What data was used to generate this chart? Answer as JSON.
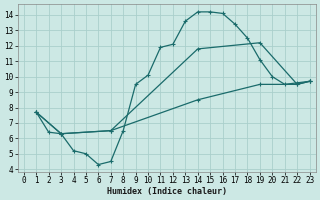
{
  "xlabel": "Humidex (Indice chaleur)",
  "xlim": [
    -0.5,
    23.5
  ],
  "ylim": [
    3.8,
    14.7
  ],
  "xticks": [
    0,
    1,
    2,
    3,
    4,
    5,
    6,
    7,
    8,
    9,
    10,
    11,
    12,
    13,
    14,
    15,
    16,
    17,
    18,
    19,
    20,
    21,
    22,
    23
  ],
  "yticks": [
    4,
    5,
    6,
    7,
    8,
    9,
    10,
    11,
    12,
    13,
    14
  ],
  "bg_color": "#cce8e4",
  "grid_color": "#aacfcc",
  "line_color": "#1a6b6b",
  "line1_x": [
    1,
    2,
    3,
    4,
    5,
    6,
    7,
    8,
    9,
    10,
    11,
    12,
    13,
    14,
    15,
    16,
    17,
    18,
    19,
    20,
    21,
    22,
    23
  ],
  "line1_y": [
    7.7,
    6.4,
    6.3,
    5.2,
    5.0,
    4.3,
    4.5,
    6.5,
    9.5,
    10.1,
    11.9,
    12.1,
    13.6,
    14.2,
    14.2,
    14.1,
    13.4,
    12.5,
    11.1,
    10.0,
    9.5,
    9.6,
    9.7
  ],
  "line2_x": [
    1,
    3,
    7,
    14,
    19,
    22,
    23
  ],
  "line2_y": [
    7.7,
    6.3,
    6.5,
    11.8,
    12.2,
    9.5,
    9.7
  ],
  "line3_x": [
    1,
    3,
    7,
    14,
    19,
    22,
    23
  ],
  "line3_y": [
    7.7,
    6.3,
    6.5,
    8.5,
    9.5,
    9.5,
    9.7
  ]
}
